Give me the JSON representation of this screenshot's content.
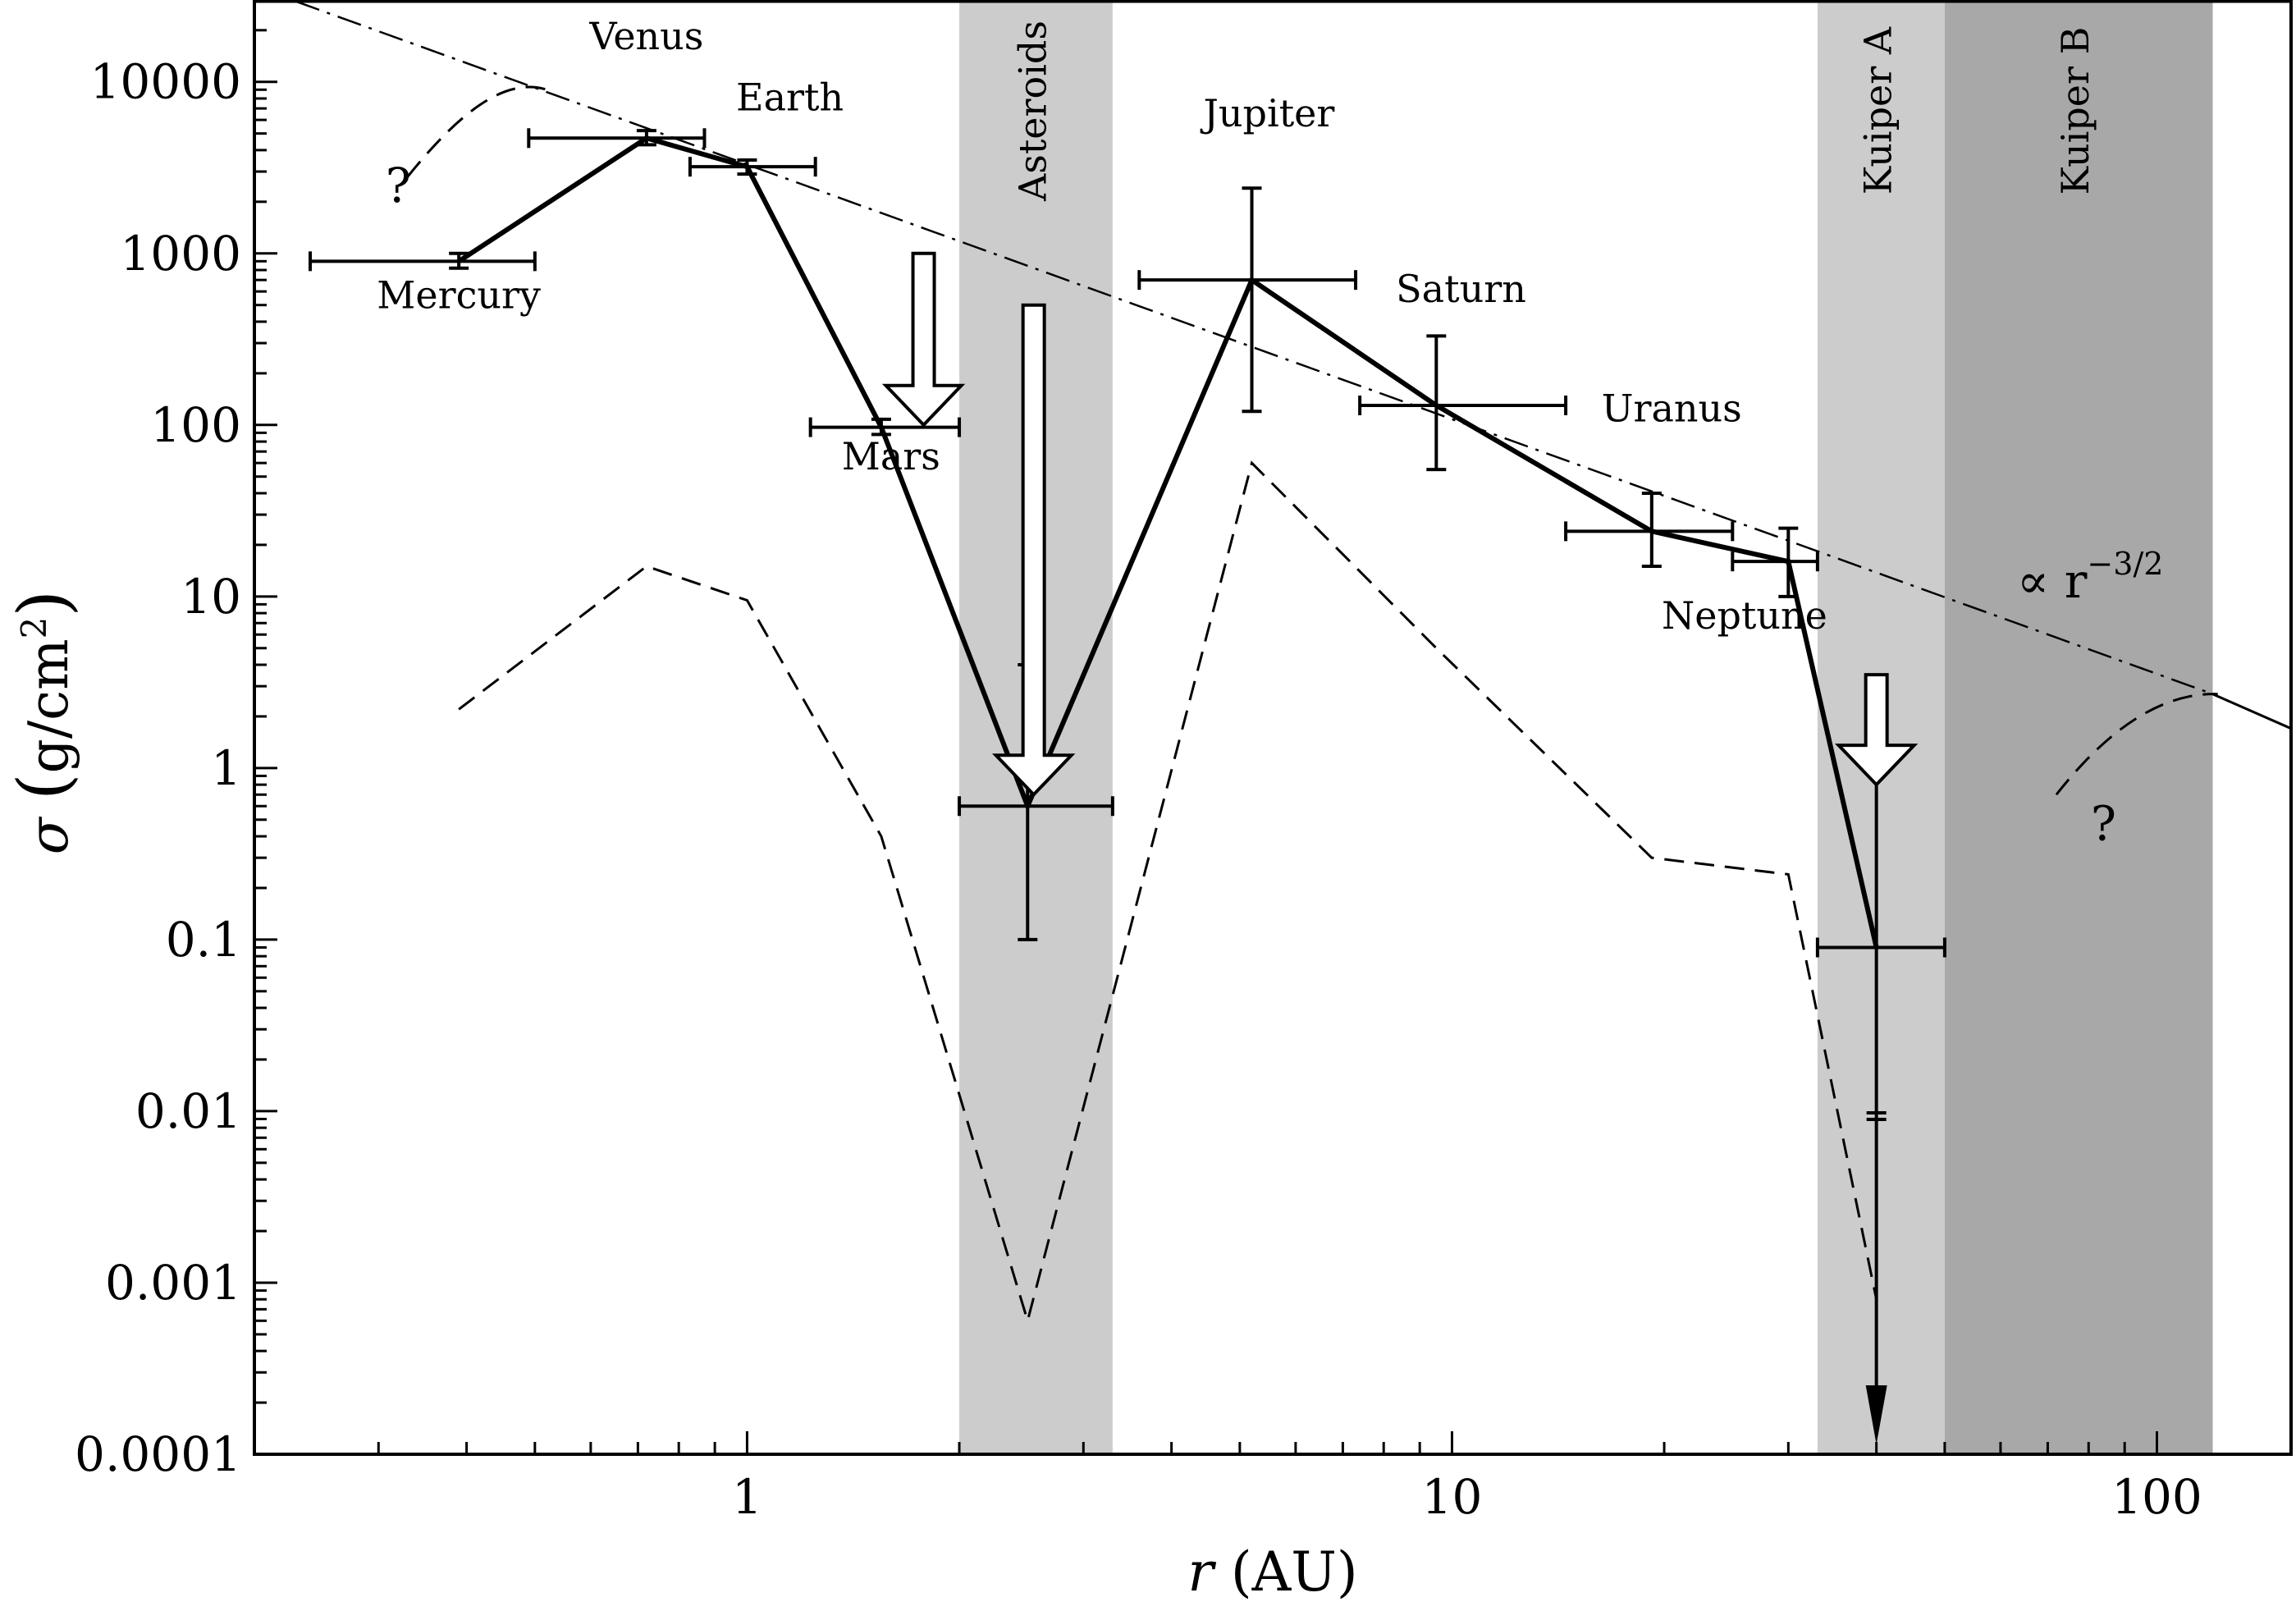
{
  "chart_data": {
    "type": "line",
    "title": "",
    "xlabel": {
      "symbol": "r",
      "unit": "(AU)"
    },
    "ylabel": {
      "symbol": "σ",
      "unit_base": "g/cm",
      "unit_sup": "2"
    },
    "x_scale": "log",
    "y_scale": "log",
    "xlim": [
      0.2,
      155
    ],
    "ylim": [
      0.0001,
      30000
    ],
    "x_ticks": [
      {
        "value": 1,
        "label": "1"
      },
      {
        "value": 10,
        "label": "10"
      },
      {
        "value": 100,
        "label": "100"
      }
    ],
    "y_ticks": [
      {
        "value": 10000,
        "label": "10000"
      },
      {
        "value": 1000,
        "label": "1000"
      },
      {
        "value": 100,
        "label": "100"
      },
      {
        "value": 10,
        "label": "10"
      },
      {
        "value": 1,
        "label": "1"
      },
      {
        "value": 0.1,
        "label": "0.1"
      },
      {
        "value": 0.01,
        "label": "0.01"
      },
      {
        "value": 0.001,
        "label": "0.001"
      },
      {
        "value": 0.0001,
        "label": "0.0001"
      }
    ],
    "bands": [
      {
        "label": "Asteroids",
        "x0": 2.0,
        "x1": 3.3,
        "color": "#cccccc"
      },
      {
        "label": "Kuiper A",
        "x0": 33,
        "x1": 50,
        "color": "#cccccc"
      },
      {
        "label": "Kuiper B",
        "x0": 50,
        "x1": 120,
        "color": "#a8a8a8"
      }
    ],
    "series": [
      {
        "style": "solid-thick",
        "points": [
          {
            "label": "Mercury",
            "x": 0.39,
            "y": 900,
            "xerr": [
              0.24,
              0.5
            ],
            "yerr": [
              820,
              1000
            ]
          },
          {
            "label": "Venus",
            "x": 0.72,
            "y": 4700,
            "xerr": [
              0.49,
              0.87
            ],
            "yerr": [
              4300,
              5200
            ]
          },
          {
            "label": "Earth",
            "x": 1.0,
            "y": 3200,
            "xerr": [
              0.83,
              1.25
            ],
            "yerr": [
              2900,
              3500
            ]
          },
          {
            "label": "Mars",
            "x": 1.55,
            "y": 97,
            "xerr": [
              1.23,
              2.0
            ],
            "yerr": [
              88,
              108
            ]
          },
          {
            "label": "",
            "x": 2.5,
            "y": 0.6,
            "xerr": [
              2.0,
              3.3
            ],
            "yerr": [
              0.1,
              4.0
            ]
          },
          {
            "label": "Jupiter",
            "x": 5.2,
            "y": 700,
            "xerr": [
              3.6,
              7.3
            ],
            "yerr": [
              120,
              2400
            ]
          },
          {
            "label": "Saturn",
            "x": 9.5,
            "y": 130,
            "xerr": [
              7.4,
              14.5
            ],
            "yerr": [
              55,
              330
            ]
          },
          {
            "label": "Uranus",
            "x": 19.2,
            "y": 24,
            "xerr": [
              14.5,
              25
            ],
            "yerr": [
              15,
              40
            ]
          },
          {
            "label": "Neptune",
            "x": 30.0,
            "y": 16,
            "xerr": [
              25,
              33
            ],
            "yerr": [
              10,
              25
            ]
          },
          {
            "label": "",
            "x": 40,
            "y": 0.09,
            "xerr": [
              33,
              50
            ],
            "yerr": [
              0.0001,
              1.0
            ],
            "upper_limit": true
          }
        ]
      },
      {
        "style": "dashed",
        "points": [
          {
            "x": 0.39,
            "y": 2.2
          },
          {
            "x": 0.72,
            "y": 15
          },
          {
            "x": 1.0,
            "y": 9.5
          },
          {
            "x": 1.55,
            "y": 0.4
          },
          {
            "x": 2.5,
            "y": 0.0006
          },
          {
            "x": 5.2,
            "y": 60
          },
          {
            "x": 9.5,
            "y": 5
          },
          {
            "x": 19.2,
            "y": 0.3
          },
          {
            "x": 30.0,
            "y": 0.24
          },
          {
            "x": 40,
            "y": 0.0008
          }
        ]
      },
      {
        "style": "dashdot",
        "label": "∝ r",
        "label_sup": "−3/2",
        "points": [
          {
            "x": 0.2,
            "y": 36000
          },
          {
            "x": 120,
            "y": 2.7
          }
        ]
      },
      {
        "style": "solid-thin",
        "points": [
          {
            "x": 120,
            "y": 2.7
          },
          {
            "x": 155,
            "y": 1.7
          }
        ]
      },
      {
        "style": "dashed-curve",
        "label": "?",
        "points": [
          {
            "x": 0.33,
            "y": 2800
          },
          {
            "x": 0.4,
            "y": 7500
          },
          {
            "x": 0.46,
            "y": 10500
          },
          {
            "x": 0.52,
            "y": 9000
          }
        ]
      },
      {
        "style": "dashed-curve",
        "label": "?",
        "points": [
          {
            "x": 72,
            "y": 0.7
          },
          {
            "x": 88,
            "y": 2.0
          },
          {
            "x": 105,
            "y": 2.75
          },
          {
            "x": 122,
            "y": 2.7
          }
        ]
      }
    ],
    "arrows": [
      {
        "x": 1.78,
        "y_from": 1000,
        "y_to": 100
      },
      {
        "x": 2.55,
        "y_from": 500,
        "y_to": 0.7
      },
      {
        "x": 40,
        "y_from": 3.5,
        "y_to": 0.8
      }
    ],
    "annotations": [
      {
        "text": "Mercury",
        "x": 0.39,
        "y": 480
      },
      {
        "text": "Venus",
        "x": 0.72,
        "y": 15500
      },
      {
        "text": "Earth",
        "x": 1.15,
        "y": 6800
      },
      {
        "text": "Mars",
        "x": 1.6,
        "y": 55
      },
      {
        "text": "Jupiter",
        "x": 5.5,
        "y": 5500
      },
      {
        "text": "Saturn",
        "x": 10.3,
        "y": 520
      },
      {
        "text": "Uranus",
        "x": 20.5,
        "y": 105
      },
      {
        "text": "Neptune",
        "x": 26,
        "y": 6.5
      },
      {
        "text": "?",
        "x": 0.32,
        "y": 2000
      },
      {
        "text": "?",
        "x": 84,
        "y": 0.38
      }
    ]
  }
}
